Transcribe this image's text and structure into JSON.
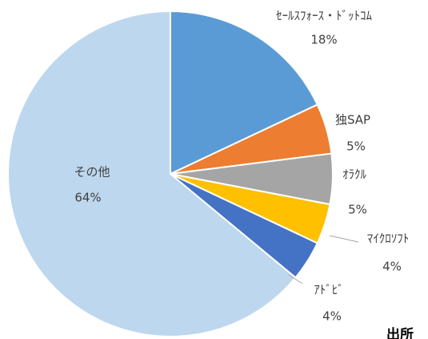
{
  "chart_data": {
    "type": "pie",
    "categories": [
      "ｾｰﾙｽﾌｫｰｽ・ﾄﾞｯﾄｺﾑ",
      "独SAP",
      "ｵﾗｸﾙ",
      "ﾏｲｸﾛｿﾌﾄ",
      "ｱﾄﾞﾋﾞ",
      "その他"
    ],
    "values": [
      18,
      5,
      5,
      4,
      4,
      64
    ],
    "value_labels": [
      "18%",
      "5%",
      "5%",
      "4%",
      "4%",
      "64%"
    ],
    "colors": [
      "#5b9bd5",
      "#ed7d31",
      "#a5a5a5",
      "#ffc000",
      "#4472c4",
      "#bdd7ee"
    ],
    "source": "出所"
  }
}
